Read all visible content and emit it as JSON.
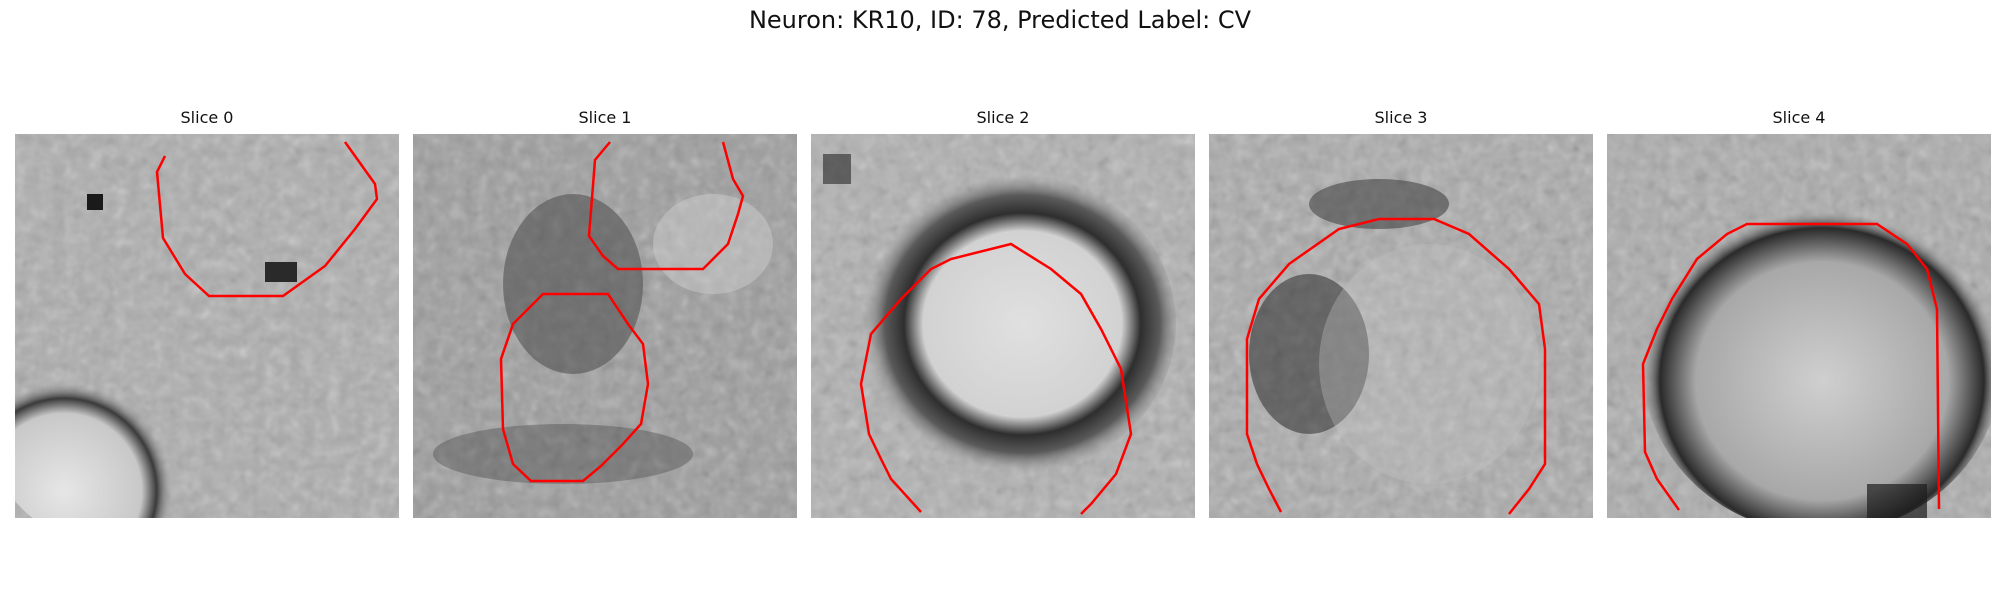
{
  "figure": {
    "title": "Neuron: KR10, ID: 78, Predicted Label: CV"
  },
  "panels": [
    {
      "title": "Slice 0"
    },
    {
      "title": "Slice 1"
    },
    {
      "title": "Slice 2"
    },
    {
      "title": "Slice 3"
    },
    {
      "title": "Slice 4"
    }
  ],
  "colors": {
    "contour": "#ff0000",
    "background": "#ffffff"
  }
}
